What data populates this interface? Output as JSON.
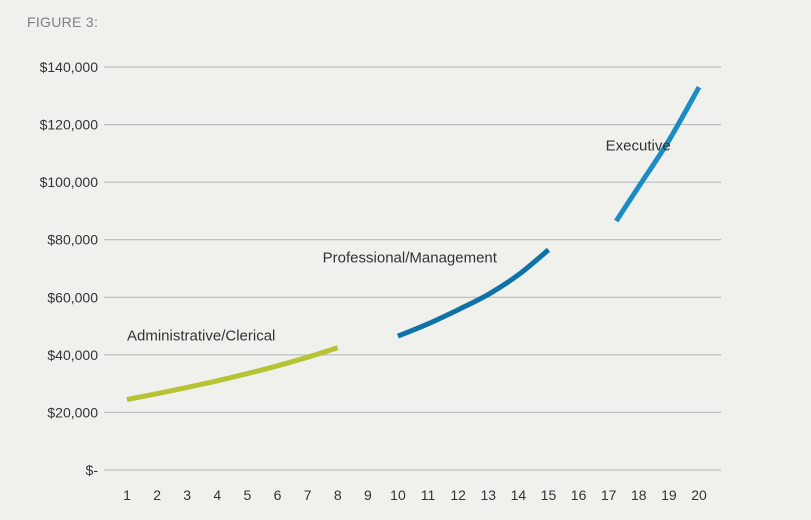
{
  "figure_label": "FIGURE 3:",
  "colors": {
    "background": "#f0f0ec",
    "grid": "#b3b3b3",
    "admin": "#b5c334",
    "professional": "#0f73a8",
    "executive": "#1b8cc4"
  },
  "chart_data": {
    "type": "line",
    "title": "",
    "xlabel": "",
    "ylabel": "",
    "x_ticks": [
      1,
      2,
      3,
      4,
      5,
      6,
      7,
      8,
      9,
      10,
      11,
      12,
      13,
      14,
      15,
      16,
      17,
      18,
      19,
      20
    ],
    "y_ticks": [
      {
        "value": 0,
        "label": "$-"
      },
      {
        "value": 20000,
        "label": "$20,000"
      },
      {
        "value": 40000,
        "label": "$40,000"
      },
      {
        "value": 60000,
        "label": "$60,000"
      },
      {
        "value": 80000,
        "label": "$80,000"
      },
      {
        "value": 100000,
        "label": "$100,000"
      },
      {
        "value": 120000,
        "label": "$120,000"
      },
      {
        "value": 140000,
        "label": "$140,000"
      }
    ],
    "xlim": [
      1,
      20
    ],
    "ylim": [
      0,
      140000
    ],
    "grid": true,
    "legend": "none",
    "series": [
      {
        "name": "Administrative/Clerical",
        "color": "#b5c334",
        "label_anchor": {
          "x": 1,
          "y": 45000
        },
        "points": [
          [
            1,
            24500
          ],
          [
            2,
            26500
          ],
          [
            3,
            28700
          ],
          [
            4,
            31000
          ],
          [
            5,
            33500
          ],
          [
            6,
            36200
          ],
          [
            7,
            39200
          ],
          [
            8,
            42500
          ]
        ]
      },
      {
        "name": "Professional/Management",
        "color": "#0f73a8",
        "label_anchor": {
          "x": 7.5,
          "y": 72000
        },
        "points": [
          [
            10,
            46500
          ],
          [
            11,
            50800
          ],
          [
            12,
            55700
          ],
          [
            13,
            61000
          ],
          [
            14,
            67800
          ],
          [
            15,
            76500
          ]
        ]
      },
      {
        "name": "Executive",
        "color": "#1b8cc4",
        "label_anchor": {
          "x": 16.9,
          "y": 111000
        },
        "points": [
          [
            17.25,
            86500
          ],
          [
            18,
            98500
          ],
          [
            19,
            114500
          ],
          [
            20,
            133000
          ]
        ]
      }
    ]
  }
}
